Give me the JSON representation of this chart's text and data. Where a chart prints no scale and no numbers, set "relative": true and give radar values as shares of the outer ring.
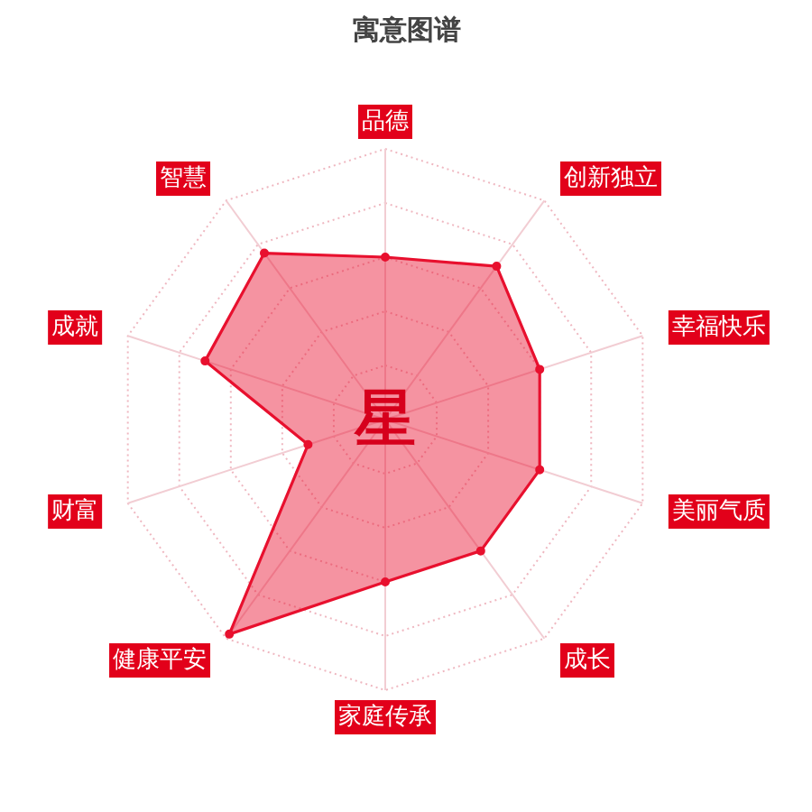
{
  "chart_data": {
    "type": "radar",
    "title": "寓意图谱",
    "categories": [
      "品德",
      "创新独立",
      "幸福快乐",
      "美丽气质",
      "成长",
      "家庭传承",
      "健康平安",
      "财富",
      "成就",
      "智慧"
    ],
    "relative": true,
    "series": [
      {
        "color": "#e8102e",
        "values": [
          0.6,
          0.7,
          0.6,
          0.6,
          0.6,
          0.6,
          0.98,
          0.3,
          0.7,
          0.76
        ]
      }
    ],
    "annotations": [
      "星"
    ],
    "marker": "circle",
    "grid": true
  }
}
